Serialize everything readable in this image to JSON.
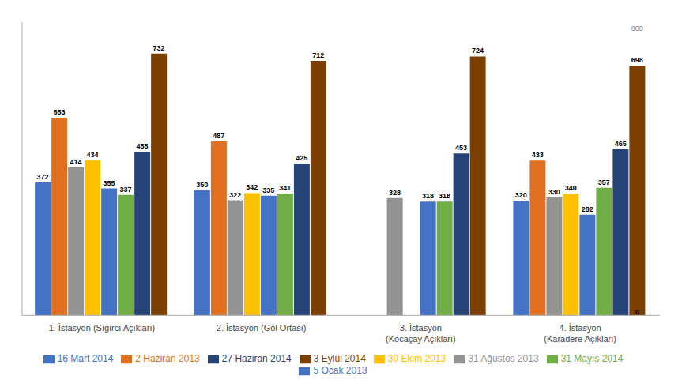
{
  "chart_data": {
    "type": "bar",
    "categories": [
      "1. İstasyon (Sığırcı Açıkları)",
      "2. İstasyon (Göl Ortası)",
      "3. İstasyon\n(Kocaçay Açıkları)",
      "4. İstasyon\n(Karadere Açıkları)"
    ],
    "series": [
      {
        "name": "5 Ocak 2013",
        "color": "#4472C4",
        "values": [
          372,
          350,
          0,
          320
        ]
      },
      {
        "name": "2 Haziran 2013",
        "color": "#E07020",
        "values": [
          553,
          487,
          0,
          433
        ]
      },
      {
        "name": "31 Ağustos 2013",
        "color": "#939393",
        "values": [
          414,
          322,
          328,
          330
        ]
      },
      {
        "name": "30 Ekim 2013",
        "color": "#FFC000",
        "values": [
          434,
          342,
          0,
          340
        ]
      },
      {
        "name": "16 Mart 2014",
        "color": "#4472C4",
        "values": [
          355,
          335,
          318,
          282
        ]
      },
      {
        "name": "31 Mayıs 2014",
        "color": "#70AD47",
        "values": [
          337,
          341,
          318,
          357
        ]
      },
      {
        "name": "27 Haziran 2014",
        "color": "#264478",
        "values": [
          458,
          425,
          453,
          465
        ]
      },
      {
        "name": "3 Eylül 2014",
        "color": "#7B3F00",
        "values": [
          732,
          712,
          724,
          698
        ]
      }
    ],
    "ylim": [
      0,
      820
    ],
    "data_labels": true,
    "tick_labels": "x",
    "grid": false,
    "legend": "bottom",
    "annotations": [
      {
        "text": "800",
        "category": "4. İstasyon\n(Karadere Açıkları)",
        "series": "3 Eylül 2014",
        "y": 810,
        "color": "gray"
      },
      {
        "text": "0",
        "category": "4. İstasyon\n(Karadere Açıkları)",
        "series": "3 Eylül 2014",
        "y": 3,
        "color": "black"
      }
    ]
  }
}
